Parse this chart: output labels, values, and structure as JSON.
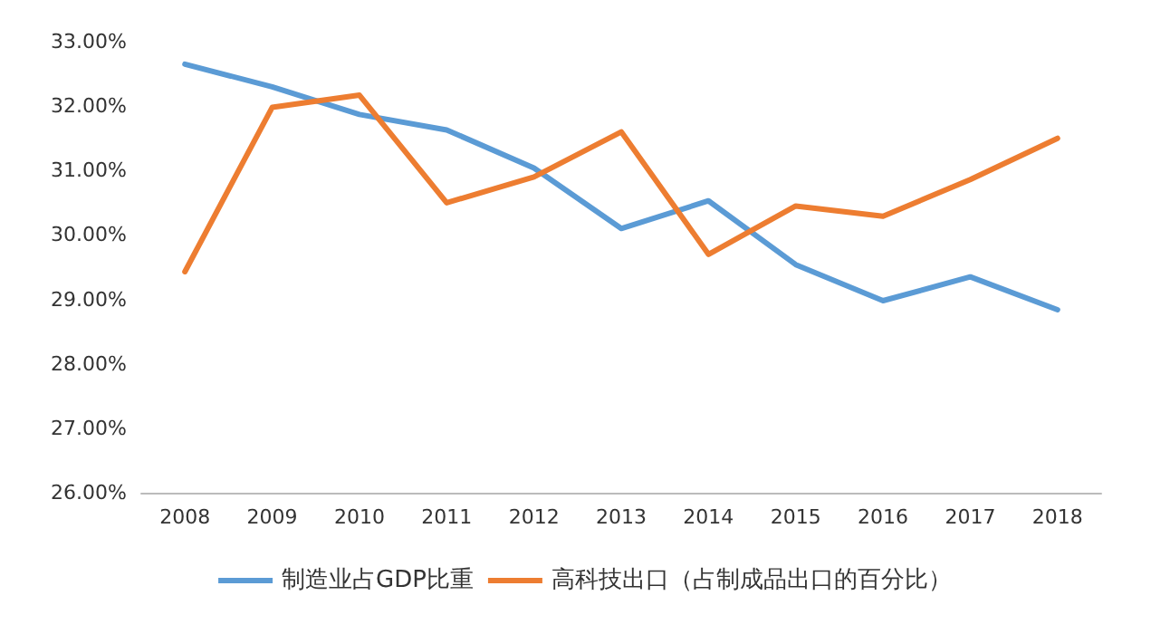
{
  "chart_data": {
    "type": "line",
    "categories": [
      "2008",
      "2009",
      "2010",
      "2011",
      "2012",
      "2013",
      "2014",
      "2015",
      "2016",
      "2017",
      "2018"
    ],
    "series": [
      {
        "name": "制造业占GDP比重",
        "color": "#5b9bd5",
        "values": [
          32.65,
          32.3,
          31.87,
          31.63,
          31.04,
          30.1,
          30.53,
          29.54,
          28.98,
          29.35,
          28.84
        ]
      },
      {
        "name": "高科技出口（占制成品出口的百分比）",
        "color": "#ed7d31",
        "values": [
          29.43,
          31.98,
          32.17,
          30.5,
          30.9,
          31.6,
          29.7,
          30.45,
          30.29,
          30.86,
          31.5
        ]
      }
    ],
    "ylim": [
      26,
      33
    ],
    "yticks": [
      {
        "value": 26,
        "label": "26.00%"
      },
      {
        "value": 27,
        "label": "27.00%"
      },
      {
        "value": 28,
        "label": "28.00%"
      },
      {
        "value": 29,
        "label": "29.00%"
      },
      {
        "value": 30,
        "label": "30.00%"
      },
      {
        "value": 31,
        "label": "31.00%"
      },
      {
        "value": 32,
        "label": "32.00%"
      },
      {
        "value": 33,
        "label": "33.00%"
      }
    ],
    "grid": false,
    "legend": "bottom",
    "marker": "none",
    "line_style": "solid"
  }
}
